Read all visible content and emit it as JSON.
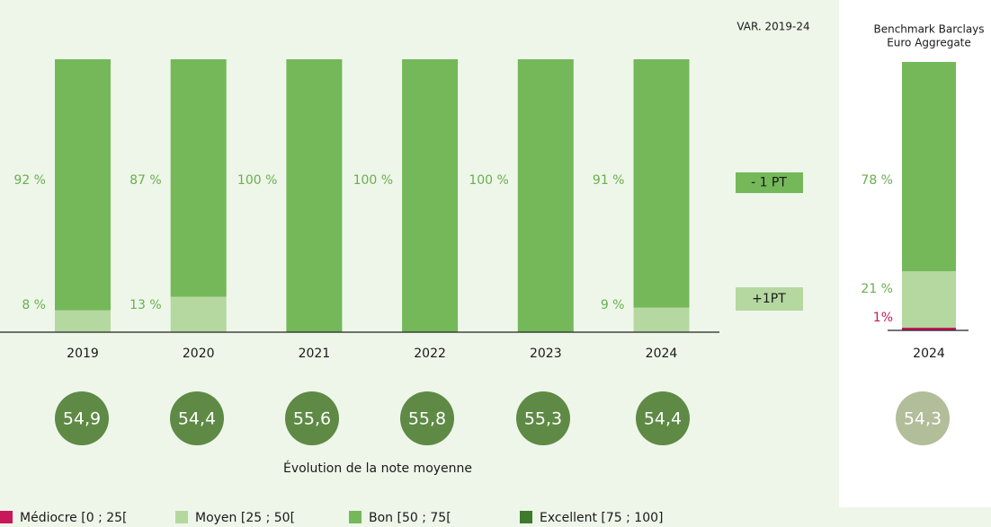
{
  "chart_data": [
    {
      "type": "bar",
      "stacked": true,
      "categories": [
        "2019",
        "2020",
        "2021",
        "2022",
        "2023",
        "2024"
      ],
      "ylim": [
        0,
        100
      ],
      "series": [
        {
          "name": "Médiocre [0 ; 25[",
          "color": "#c8185a",
          "values": [
            0,
            0,
            0,
            0,
            0,
            0
          ]
        },
        {
          "name": "Moyen [25 ; 50[",
          "color": "#b5d8a0",
          "values": [
            8,
            13,
            0,
            0,
            0,
            9
          ],
          "value_labels": [
            "8 %",
            "13 %",
            null,
            null,
            null,
            "9 %"
          ]
        },
        {
          "name": "Bon [50 ; 75[",
          "color": "#74b85a",
          "values": [
            92,
            87,
            100,
            100,
            100,
            91
          ],
          "value_labels": [
            "92 %",
            "87 %",
            "100 %",
            "100 %",
            "100 %",
            "91 %"
          ]
        },
        {
          "name": "Excellent [75 ; 100]",
          "color": "#3e7a2c",
          "values": [
            0,
            0,
            0,
            0,
            0,
            0
          ]
        }
      ],
      "variation": {
        "title": "VAR. 2019-24",
        "labels": [
          "- 1 PT",
          "+1PT"
        ]
      },
      "scores": {
        "caption": "Évolution de la note moyenne",
        "color": "#5e8a45",
        "values": [
          54.9,
          54.4,
          55.6,
          55.8,
          55.3,
          54.4
        ],
        "value_labels": [
          "54,9",
          "54,4",
          "55,6",
          "55,8",
          "55,3",
          "54,4"
        ]
      }
    },
    {
      "type": "bar",
      "stacked": true,
      "title": [
        "Benchmark Barclays",
        "Euro Aggregate"
      ],
      "categories": [
        "2024"
      ],
      "ylim": [
        0,
        100
      ],
      "series": [
        {
          "color": "#c8185a",
          "values": [
            1
          ],
          "value_labels": [
            "1%"
          ]
        },
        {
          "color": "#b5d8a0",
          "values": [
            21
          ],
          "value_labels": [
            "21 %"
          ]
        },
        {
          "color": "#74b85a",
          "values": [
            78
          ],
          "value_labels": [
            "78 %"
          ]
        }
      ],
      "scores": {
        "color": "#b2bd9a",
        "values": [
          54.3
        ],
        "value_labels": [
          "54,3"
        ]
      }
    }
  ]
}
